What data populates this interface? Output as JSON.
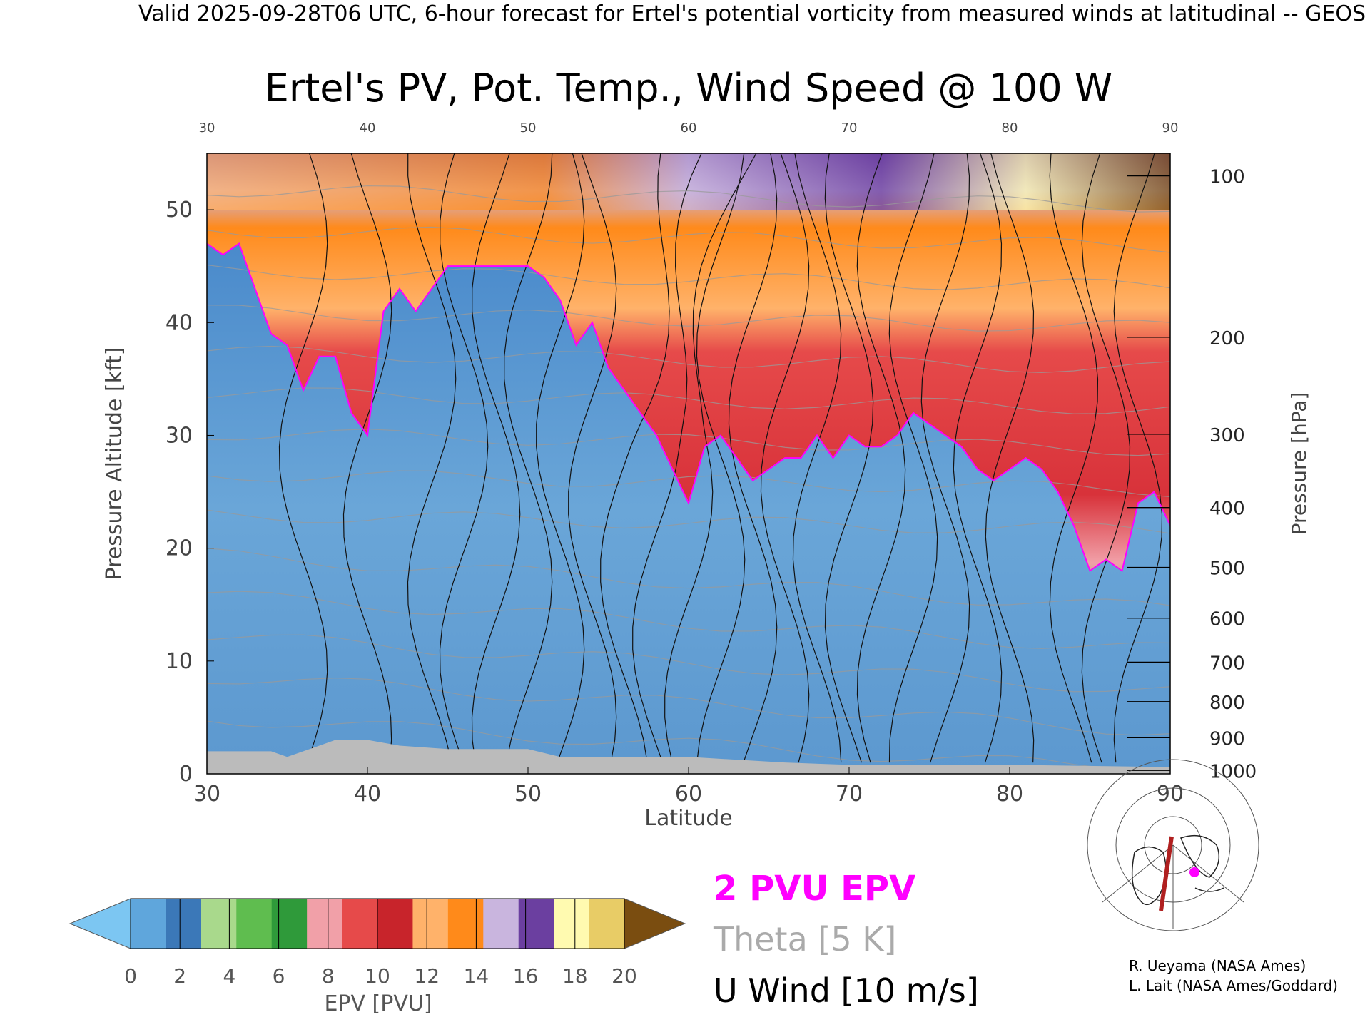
{
  "header": "Valid 2025-09-28T06 UTC, 6-hour forecast for Ertel's potential vorticity from measured winds at latitudinal -- GEOS",
  "chart_data": {
    "type": "heatmap",
    "title": "Ertel's PV, Pot. Temp., Wind Speed @ 100 W",
    "xlabel": "Latitude",
    "ylabel": "Pressure Altitude [kft]",
    "ylabel_right": "Pressure [hPa]",
    "xlim": [
      30,
      90
    ],
    "ylim": [
      0,
      55
    ],
    "x_ticks": [
      "30",
      "40",
      "50",
      "60",
      "70",
      "80",
      "90"
    ],
    "y_ticks": [
      "0",
      "10",
      "20",
      "30",
      "40",
      "50"
    ],
    "top_ticks": [
      "30",
      "40",
      "50",
      "60",
      "70",
      "80",
      "90"
    ],
    "pressure_ticks": [
      {
        "label": "100",
        "kft": 53.0
      },
      {
        "label": "200",
        "kft": 38.7
      },
      {
        "label": "300",
        "kft": 30.1
      },
      {
        "label": "400",
        "kft": 23.6
      },
      {
        "label": "500",
        "kft": 18.3
      },
      {
        "label": "600",
        "kft": 13.8
      },
      {
        "label": "700",
        "kft": 9.9
      },
      {
        "label": "800",
        "kft": 6.4
      },
      {
        "label": "900",
        "kft": 3.2
      },
      {
        "label": "1000",
        "kft": 0.3
      }
    ],
    "colorbar": {
      "label": "EPV [PVU]",
      "ticks": [
        "0",
        "2",
        "4",
        "6",
        "8",
        "10",
        "12",
        "14",
        "16",
        "18",
        "20"
      ],
      "colors": [
        "#7cc6f2",
        "#5fa6dc",
        "#3b78b8",
        "#a9d98c",
        "#5fbd4f",
        "#2f9a3a",
        "#f1a0a8",
        "#e64a4a",
        "#c8242b",
        "#ffb26a",
        "#ff8a1a",
        "#c9b5de",
        "#6b3fa0",
        "#fffab0",
        "#e8cc66",
        "#7a4d10"
      ]
    },
    "pv_boundary": {
      "name": "2 PVU EPV",
      "lat": [
        30,
        31,
        32,
        33,
        34,
        35,
        36,
        37,
        38,
        39,
        40,
        41,
        42,
        43,
        44,
        45,
        46,
        47,
        48,
        49,
        50,
        51,
        52,
        53,
        54,
        55,
        56,
        57,
        58,
        59,
        60,
        61,
        62,
        63,
        64,
        65,
        66,
        67,
        68,
        69,
        70,
        71,
        72,
        73,
        74,
        75,
        76,
        77,
        78,
        79,
        80,
        81,
        82,
        83,
        84,
        85,
        86,
        87,
        88,
        89,
        90
      ],
      "kft": [
        47,
        46,
        47,
        43,
        39,
        38,
        34,
        37,
        37,
        32,
        30,
        41,
        43,
        41,
        43,
        45,
        45,
        45,
        45,
        45,
        45,
        44,
        42,
        38,
        40,
        36,
        34,
        32,
        30,
        27,
        24,
        29,
        30,
        28,
        26,
        27,
        28,
        28,
        30,
        28,
        30,
        29,
        29,
        30,
        32,
        31,
        30,
        29,
        27,
        26,
        27,
        28,
        27,
        25,
        22,
        18,
        19,
        18,
        24,
        25,
        22
      ]
    },
    "theta_label": "Theta [5 K]",
    "theta_contours_K": [
      "290",
      "300",
      "310",
      "320",
      "330",
      "340",
      "350",
      "360",
      "370",
      "380",
      "390",
      "400",
      "410",
      "420"
    ],
    "wind_label": "U Wind [10 m/s]",
    "wind_contours_ms": [
      "-10",
      "0",
      "10",
      "20",
      "30",
      "40",
      "50"
    ]
  },
  "credits": [
    "R. Ueyama (NASA Ames)",
    "L. Lait (NASA Ames/Goddard)"
  ]
}
